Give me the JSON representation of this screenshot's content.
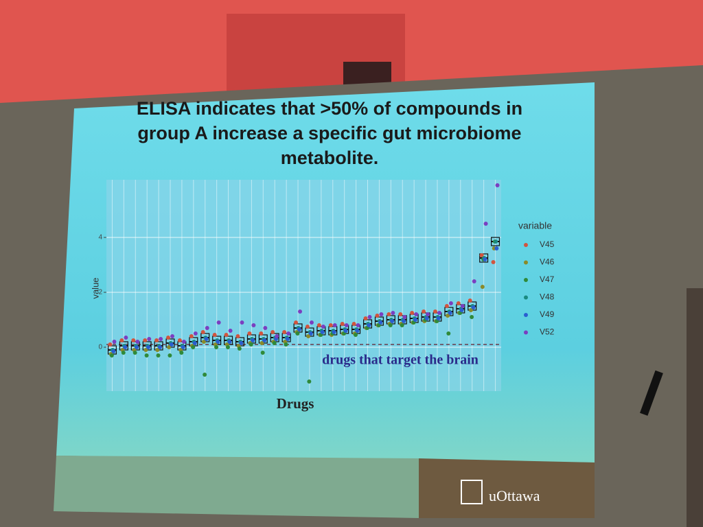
{
  "chart_data": {
    "type": "box-strip",
    "title": "ELISA indicates that >50% of compounds in group A increase a specific gut microbiome metabolite.",
    "x_label": "Drugs",
    "y_label": "value",
    "legend_title": "variable",
    "annotation": "drugs that target the brain",
    "reference_line": 0.1,
    "logo": "uOttawa",
    "categories": [
      null,
      null,
      null,
      null,
      null,
      null,
      null,
      null,
      null,
      null,
      null,
      null,
      null,
      null,
      null,
      null,
      null,
      null,
      null,
      null,
      null,
      null,
      null,
      null,
      null,
      null,
      null,
      null,
      null,
      null,
      null,
      null,
      null,
      null
    ],
    "medians": [
      -0.1,
      0.05,
      0.05,
      0.05,
      0.05,
      0.15,
      0.05,
      0.2,
      0.35,
      0.25,
      0.25,
      0.2,
      0.3,
      0.3,
      0.35,
      0.35,
      0.7,
      0.55,
      0.6,
      0.6,
      0.65,
      0.65,
      0.85,
      0.95,
      1.0,
      1.0,
      1.05,
      1.1,
      1.1,
      1.3,
      1.4,
      1.5,
      3.25,
      3.85
    ],
    "series": [
      {
        "name": "V45",
        "color": "#d0553f",
        "values": [
          0.1,
          0.25,
          0.25,
          0.25,
          0.25,
          0.35,
          0.25,
          0.4,
          0.55,
          0.45,
          0.45,
          0.4,
          0.5,
          0.5,
          0.55,
          0.55,
          0.9,
          0.75,
          0.8,
          0.8,
          0.85,
          0.85,
          1.05,
          1.15,
          1.2,
          1.2,
          1.25,
          1.3,
          1.3,
          1.5,
          1.6,
          1.7,
          3.35,
          3.1
        ]
      },
      {
        "name": "V46",
        "color": "#8a8a2a",
        "values": [
          -0.25,
          -0.1,
          -0.1,
          -0.1,
          -0.1,
          0.0,
          -0.1,
          0.05,
          0.2,
          0.1,
          0.1,
          0.05,
          0.15,
          0.15,
          0.2,
          0.2,
          0.55,
          0.4,
          0.45,
          0.45,
          0.5,
          0.5,
          0.7,
          0.8,
          0.85,
          0.85,
          0.9,
          0.95,
          0.95,
          1.15,
          1.25,
          1.35,
          2.2,
          3.6
        ]
      },
      {
        "name": "V47",
        "color": "#2f8a3a",
        "values": [
          -0.3,
          -0.2,
          -0.2,
          -0.3,
          -0.3,
          -0.3,
          -0.2,
          0.0,
          -1.0,
          0.0,
          0.0,
          -0.05,
          0.1,
          -0.2,
          0.15,
          0.1,
          0.5,
          -1.25,
          0.45,
          0.5,
          0.5,
          0.45,
          0.7,
          0.8,
          0.8,
          0.8,
          0.9,
          1.0,
          0.95,
          0.5,
          1.25,
          1.1,
          3.2,
          3.85
        ]
      },
      {
        "name": "V48",
        "color": "#1a8a80",
        "values": [
          -0.1,
          0.05,
          0.05,
          0.05,
          0.05,
          0.15,
          0.05,
          0.2,
          0.35,
          0.25,
          0.25,
          0.2,
          0.3,
          0.3,
          0.35,
          0.35,
          0.7,
          0.55,
          0.6,
          0.6,
          0.65,
          0.65,
          0.85,
          0.95,
          1.0,
          1.0,
          1.05,
          1.1,
          1.1,
          1.3,
          1.4,
          1.5,
          3.25,
          3.85
        ]
      },
      {
        "name": "V49",
        "color": "#2a5ed0",
        "values": [
          -0.15,
          0.0,
          0.0,
          0.0,
          0.0,
          0.1,
          0.0,
          0.15,
          0.3,
          0.2,
          0.2,
          0.15,
          0.25,
          0.25,
          0.3,
          0.3,
          0.65,
          0.5,
          0.55,
          0.55,
          0.6,
          0.6,
          0.8,
          0.9,
          0.95,
          0.95,
          1.0,
          1.05,
          1.05,
          1.25,
          1.35,
          1.45,
          3.2,
          3.6
        ]
      },
      {
        "name": "V52",
        "color": "#7a3fc0",
        "values": [
          0.2,
          0.35,
          0.2,
          0.3,
          0.3,
          0.4,
          0.2,
          0.5,
          0.7,
          0.9,
          0.6,
          0.9,
          0.8,
          0.7,
          0.4,
          0.5,
          1.3,
          0.9,
          0.75,
          0.8,
          0.8,
          0.8,
          1.1,
          1.2,
          1.25,
          1.1,
          1.2,
          1.2,
          1.25,
          1.6,
          1.5,
          2.4,
          4.5,
          5.9
        ]
      }
    ],
    "ylim": [
      -1.6,
      6.1
    ],
    "yticks": [
      0,
      2,
      4
    ],
    "grid": true
  }
}
